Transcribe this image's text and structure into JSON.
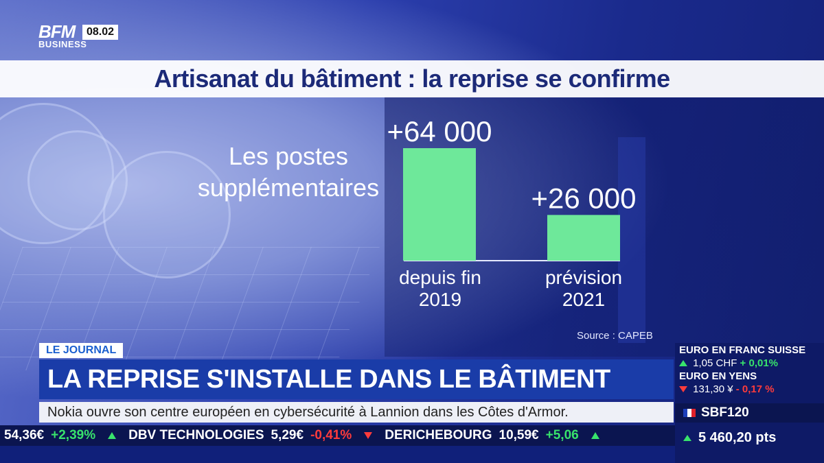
{
  "logo": {
    "brand": "BFM",
    "sub": "BUSINESS",
    "time": "08.02"
  },
  "title": "Artisanat du bâtiment : la reprise se confirme",
  "chart_data": {
    "type": "bar",
    "title": "Les postes supplémentaires",
    "categories": [
      "depuis fin 2019",
      "prévision 2021"
    ],
    "category_lines": [
      [
        "depuis fin",
        "2019"
      ],
      [
        "prévision",
        "2021"
      ]
    ],
    "values": [
      64000,
      26000
    ],
    "value_labels": [
      "+64 000",
      "+26 000"
    ],
    "bar_color": "#6ee89a",
    "source": "Source : CAPEB"
  },
  "lower_third": {
    "tag": "LE JOURNAL",
    "headline": "LA REPRISE S'INSTALLE DANS LE BÂTIMENT",
    "news": "Nokia ouvre son centre européen en cybersécurité à Lannion dans les Côtes d'Armor."
  },
  "ticker": [
    {
      "name": "",
      "price": "54,36€",
      "change": "+2,39%",
      "dir": "up"
    },
    {
      "name": "DBV TECHNOLOGIES",
      "price": "5,29€",
      "change": "-0,41%",
      "dir": "down"
    },
    {
      "name": "DERICHEBOURG",
      "price": "10,59€",
      "change": "+5,06",
      "dir": "up"
    }
  ],
  "markets": {
    "eur_chf": {
      "title": "EURO EN FRANC SUISSE",
      "value": "1,05 CHF",
      "change": "+ 0,01%",
      "dir": "up"
    },
    "eur_jpy": {
      "title": "EURO EN YENS",
      "value": "131,30 ¥",
      "change": "- 0,17 %",
      "dir": "down"
    },
    "index": {
      "name": "SBF120",
      "value": "5 460,20 pts",
      "dir": "up"
    }
  },
  "colors": {
    "up": "#38e36c",
    "down": "#ff3b3b",
    "headline_bg": "#1a3ca8",
    "title_text": "#1c2a78"
  }
}
